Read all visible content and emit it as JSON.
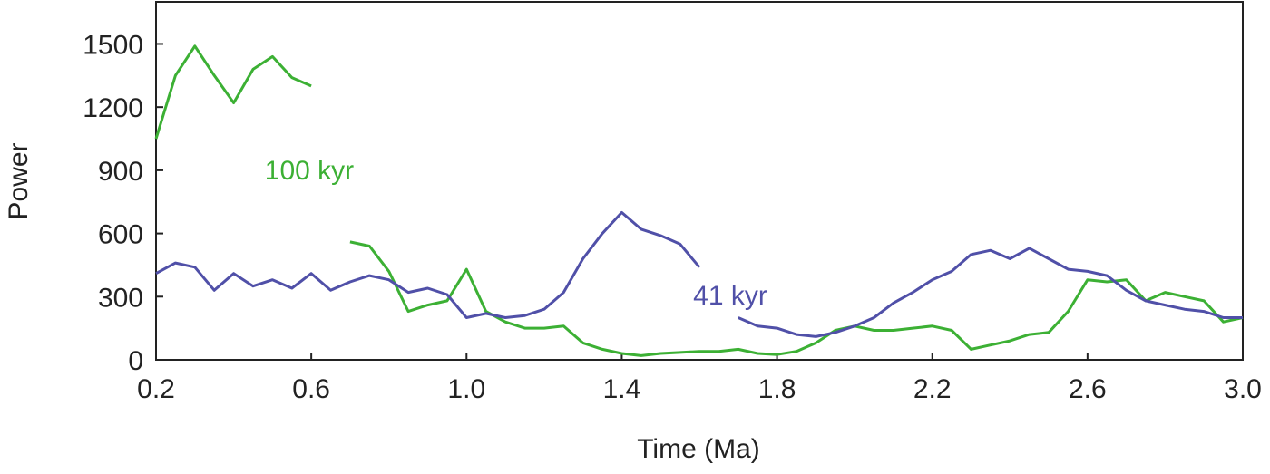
{
  "chart_data": {
    "type": "line",
    "xlabel": "Time (Ma)",
    "ylabel": "Power",
    "x": [
      0.2,
      0.25,
      0.3,
      0.35,
      0.4,
      0.45,
      0.5,
      0.55,
      0.6,
      0.65,
      0.7,
      0.75,
      0.8,
      0.85,
      0.9,
      0.95,
      1.0,
      1.05,
      1.1,
      1.15,
      1.2,
      1.25,
      1.3,
      1.35,
      1.4,
      1.45,
      1.5,
      1.55,
      1.6,
      1.65,
      1.7,
      1.75,
      1.8,
      1.85,
      1.9,
      1.95,
      2.0,
      2.05,
      2.1,
      2.15,
      2.2,
      2.25,
      2.3,
      2.35,
      2.4,
      2.45,
      2.5,
      2.55,
      2.6,
      2.65,
      2.7,
      2.75,
      2.8,
      2.85,
      2.9,
      2.95,
      3.0
    ],
    "series": [
      {
        "name": "100 kyr",
        "color": "#3cb034",
        "values": [
          1050,
          1350,
          1490,
          1350,
          1220,
          1380,
          1440,
          1340,
          1300,
          null,
          560,
          540,
          420,
          230,
          260,
          280,
          430,
          230,
          180,
          150,
          150,
          160,
          80,
          50,
          30,
          20,
          30,
          35,
          40,
          40,
          50,
          30,
          25,
          40,
          80,
          140,
          160,
          140,
          140,
          150,
          160,
          140,
          50,
          70,
          90,
          120,
          130,
          230,
          380,
          370,
          380,
          280,
          320,
          300,
          280,
          180,
          200
        ]
      },
      {
        "name": "41 kyr",
        "color": "#5050a8",
        "values": [
          410,
          460,
          440,
          330,
          410,
          350,
          380,
          340,
          410,
          330,
          370,
          400,
          380,
          320,
          340,
          310,
          200,
          220,
          200,
          210,
          240,
          320,
          480,
          600,
          700,
          620,
          590,
          550,
          440,
          null,
          200,
          160,
          150,
          120,
          110,
          130,
          160,
          200,
          270,
          320,
          380,
          420,
          500,
          520,
          480,
          530,
          480,
          430,
          420,
          400,
          330,
          280,
          260,
          240,
          230,
          200,
          200
        ]
      }
    ],
    "xlim": [
      0.2,
      3.0
    ],
    "xticks": [
      0.2,
      0.6,
      {
        "value": 1,
        "label": "1.0"
      },
      1.4,
      1.8,
      2.2,
      2.6,
      {
        "value": 3,
        "label": "3.0"
      }
    ],
    "ylim": [
      0,
      1700
    ],
    "yticks": [
      0,
      300,
      600,
      900,
      1200,
      1500
    ]
  }
}
